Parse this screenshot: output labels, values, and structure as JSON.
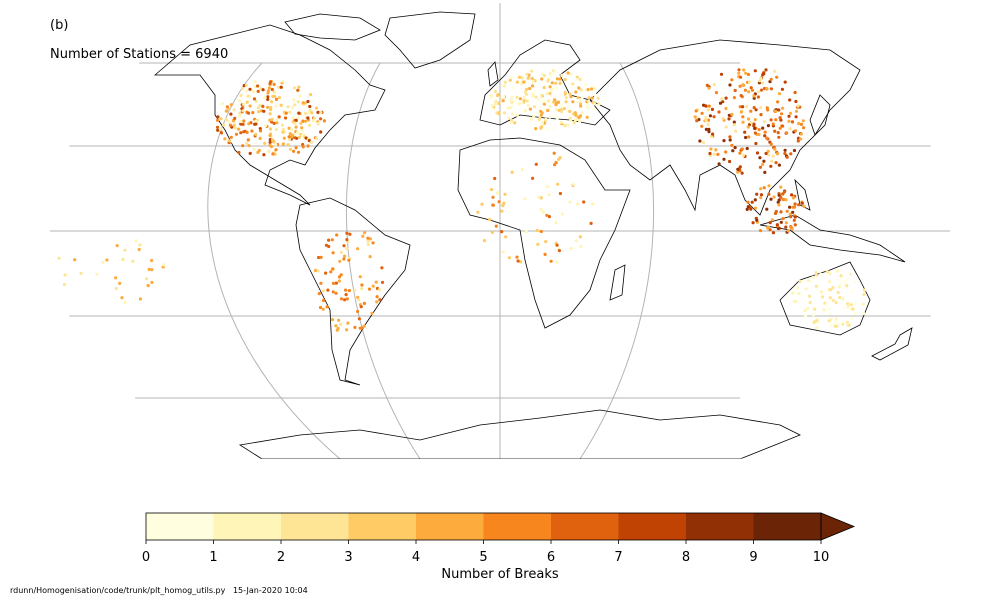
{
  "panel_label": "(b)",
  "station_count_text": "Number of Stations = 6940",
  "footer_text": "rdunn/Homogenisation/code/trunk/plt_homog_utils.py   15-Jan-2020 10:04",
  "chart_data": {
    "type": "map",
    "projection": "Robinson",
    "colorbar": {
      "label": "Number of Breaks",
      "ticks": [
        "0",
        "1",
        "2",
        "3",
        "4",
        "5",
        "6",
        "7",
        "8",
        "9",
        "10"
      ],
      "extend": "max",
      "colors": [
        "#ffffe0",
        "#fff5b8",
        "#fee596",
        "#fecb64",
        "#fdab3c",
        "#f7861f",
        "#e0620e",
        "#c04304",
        "#923005",
        "#6b2406",
        "#6b2406"
      ]
    },
    "station_clusters": [
      {
        "region": "North America",
        "breaks": [
          1,
          2,
          3,
          4,
          5,
          6,
          7
        ]
      },
      {
        "region": "Europe",
        "breaks": [
          0,
          1,
          2,
          3,
          4
        ]
      },
      {
        "region": "East Asia",
        "breaks": [
          2,
          4,
          5,
          6,
          7,
          8
        ]
      },
      {
        "region": "Southeast Asia",
        "breaks": [
          4,
          5,
          6,
          7,
          8
        ]
      },
      {
        "region": "South America",
        "breaks": [
          2,
          4,
          5,
          6
        ]
      },
      {
        "region": "Africa",
        "breaks": [
          1,
          3,
          5,
          6
        ]
      },
      {
        "region": "Australia",
        "breaks": [
          0,
          1,
          2
        ]
      },
      {
        "region": "Pacific",
        "breaks": [
          1,
          2,
          4
        ]
      }
    ]
  }
}
